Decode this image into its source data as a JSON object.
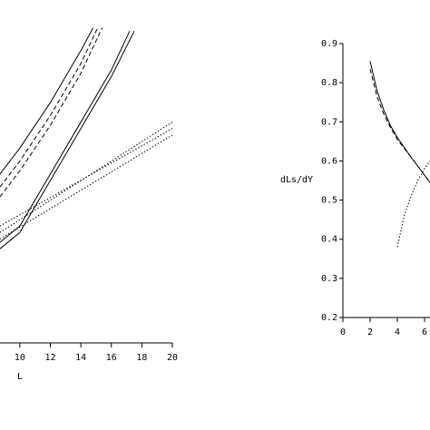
{
  "chart_data": [
    {
      "type": "line",
      "xlabel": "L",
      "xlim": [
        8.7,
        20
      ],
      "ylim": [
        0,
        1
      ],
      "xticks": [
        10,
        12,
        14,
        16,
        18,
        20
      ],
      "series": [
        {
          "dash": "solid",
          "x": [
            8.7,
            10,
            12,
            14,
            14.8
          ],
          "values": [
            0.52,
            0.6,
            0.74,
            0.9,
            0.97
          ]
        },
        {
          "dash": "dashed",
          "x": [
            8.7,
            10,
            12,
            14,
            15.1
          ],
          "values": [
            0.48,
            0.56,
            0.7,
            0.86,
            0.97
          ]
        },
        {
          "dash": "dashed",
          "x": [
            8.7,
            10,
            12,
            14,
            15.4
          ],
          "values": [
            0.45,
            0.53,
            0.67,
            0.83,
            0.97
          ]
        },
        {
          "dash": "solid",
          "x": [
            8.7,
            10,
            12,
            14,
            16,
            17.2
          ],
          "values": [
            0.31,
            0.36,
            0.52,
            0.68,
            0.84,
            0.96
          ]
        },
        {
          "dash": "solid",
          "x": [
            8.7,
            10,
            12,
            14,
            16,
            17.5
          ],
          "values": [
            0.29,
            0.34,
            0.5,
            0.66,
            0.82,
            0.96
          ]
        },
        {
          "dash": "dotted",
          "x": [
            8.7,
            20
          ],
          "values": [
            0.34,
            0.68
          ]
        },
        {
          "dash": "dotted",
          "x": [
            8.7,
            20
          ],
          "values": [
            0.36,
            0.66
          ]
        },
        {
          "dash": "dotted",
          "x": [
            8.7,
            20
          ],
          "values": [
            0.32,
            0.64
          ]
        }
      ]
    },
    {
      "type": "line",
      "ylabel": "dLs/dY",
      "xlim": [
        0,
        6.4
      ],
      "ylim": [
        0.2,
        0.9
      ],
      "xticks": [
        0,
        2,
        4,
        6
      ],
      "yticks": [
        0.2,
        0.3,
        0.4,
        0.5,
        0.6,
        0.7,
        0.8,
        0.9
      ],
      "series": [
        {
          "dash": "solid",
          "x": [
            2,
            2.5,
            3,
            3.5,
            4,
            5,
            6.4
          ],
          "values": [
            0.855,
            0.78,
            0.73,
            0.69,
            0.66,
            0.61,
            0.545
          ]
        },
        {
          "dash": "dashed",
          "x": [
            2,
            2.5,
            3,
            3.5,
            4,
            5,
            6.4
          ],
          "values": [
            0.835,
            0.765,
            0.72,
            0.685,
            0.655,
            0.61,
            0.545
          ]
        },
        {
          "dash": "dotted",
          "x": [
            4,
            4.5,
            5,
            5.5,
            6,
            6.4
          ],
          "values": [
            0.38,
            0.46,
            0.51,
            0.55,
            0.58,
            0.6
          ]
        }
      ]
    }
  ]
}
